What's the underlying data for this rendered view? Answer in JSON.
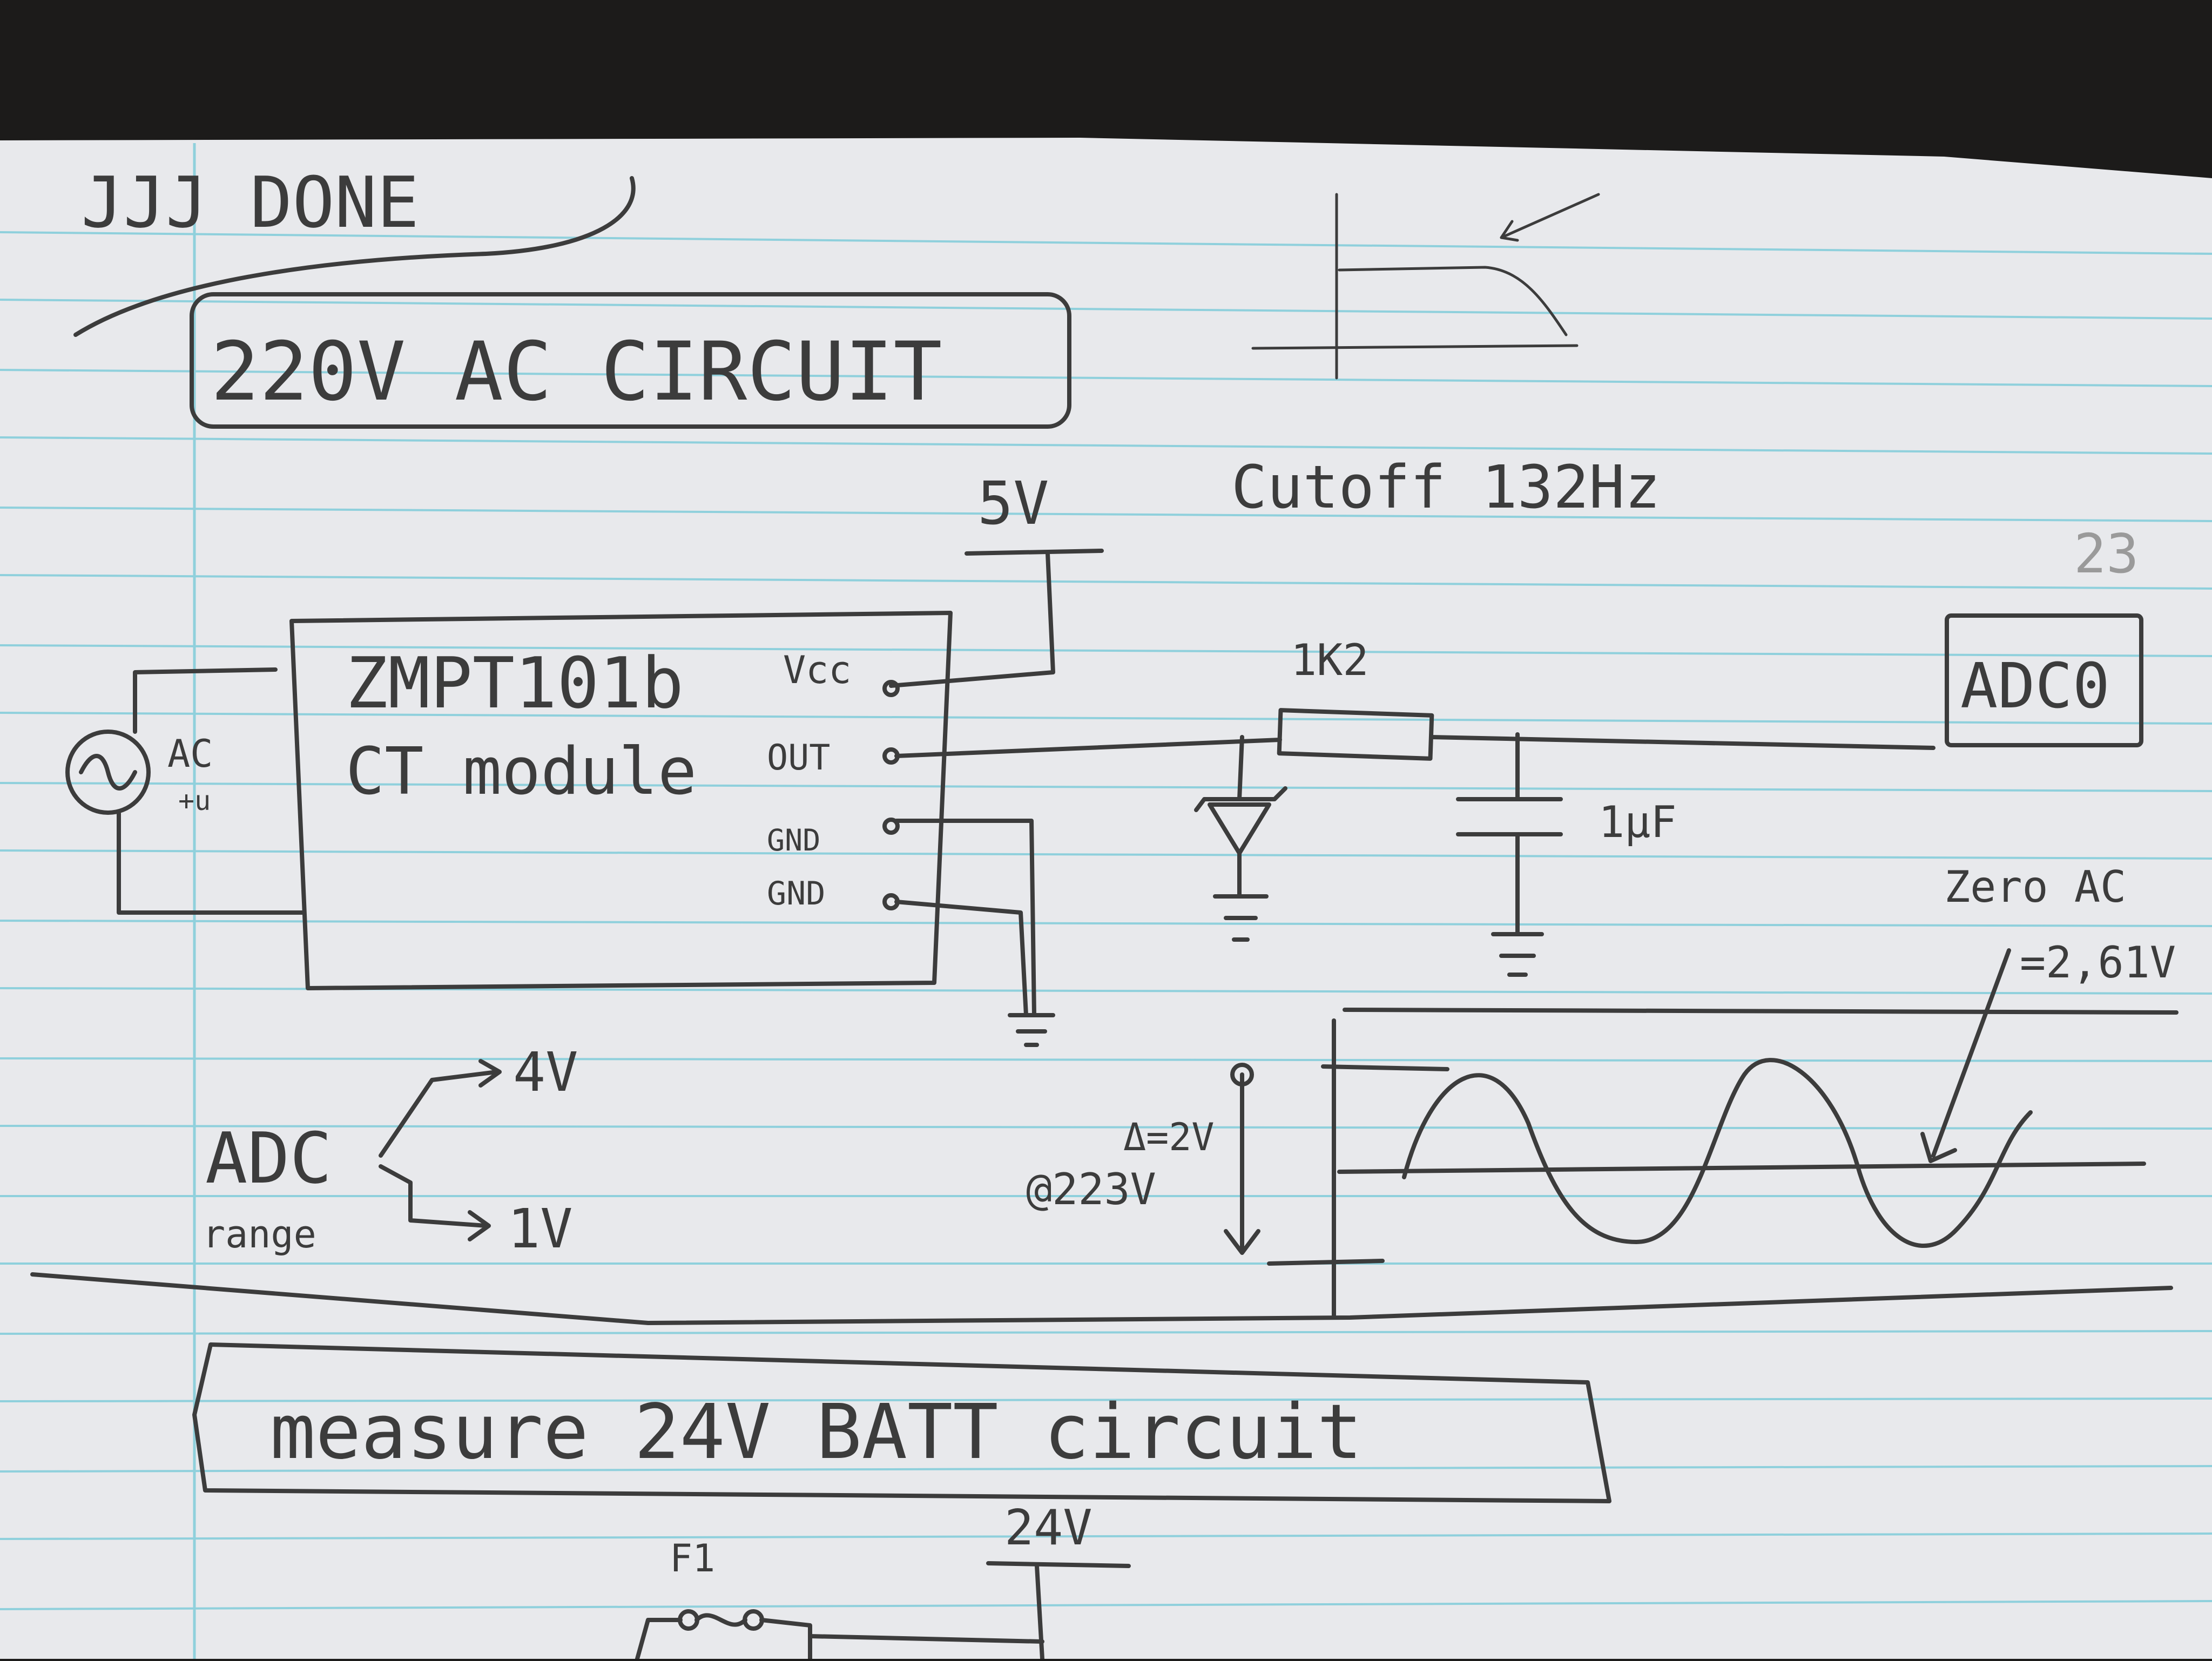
{
  "page": {
    "status_note": "JJJ DONE",
    "section1_title": "220V AC CIRCUIT",
    "section2_title": "measure 24V BATT circuit",
    "cutoff_note": "Cutoff 132Hz",
    "page_number": "23"
  },
  "circuit_ac": {
    "supply_label": "5V",
    "module_name": "ZMPT101b",
    "module_desc": "CT module",
    "pins": [
      "Vcc",
      "OUT",
      "GND",
      "GND"
    ],
    "source_label": "AC",
    "source_sublabel": "+u",
    "resistor_label": "1K2",
    "capacitor_label": "1µF",
    "adc_label": "ADC0"
  },
  "adc_range": {
    "label": "ADC",
    "sublabel": "range",
    "high": "4V",
    "low": "1V"
  },
  "waveform": {
    "delta_label": "Δ=2V",
    "at_label": "@223V",
    "zero_label": "Zero AC",
    "zero_value": "=2,61V"
  },
  "circuit_batt": {
    "supply_label": "24V",
    "fuse_label": "F1"
  },
  "colors": {
    "paper": "#e8e9ec",
    "rule_line": "#8fd0dc",
    "margin_line": "#8fd0dc",
    "pencil": "#3c3c3c",
    "background": "#1c1b1a"
  }
}
